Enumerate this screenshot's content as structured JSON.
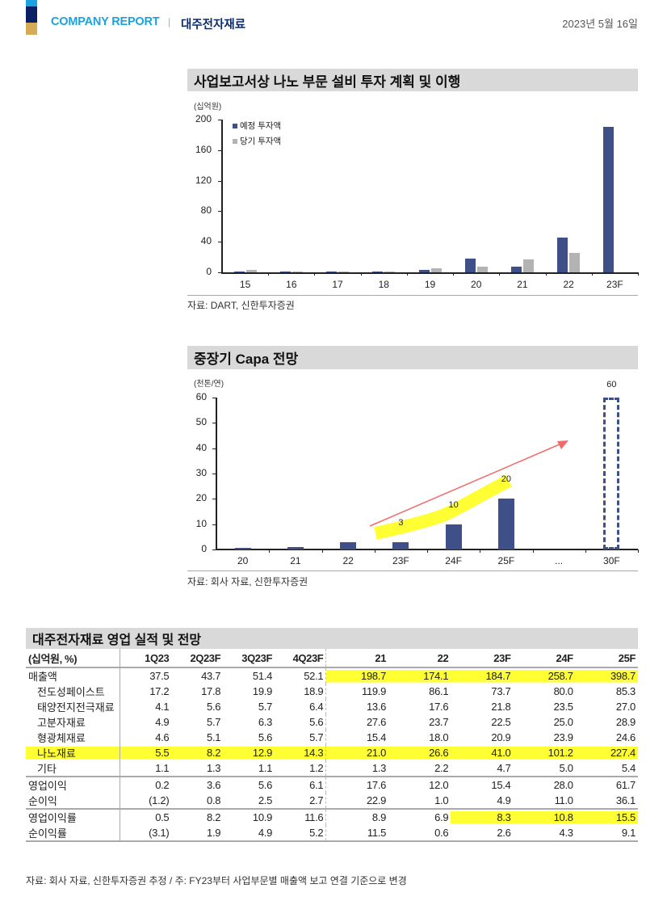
{
  "header": {
    "company_report": "COMPANY REPORT",
    "separator": "|",
    "company_name": "대주전자재료",
    "date": "2023년 5월 16일",
    "logo_colors": [
      "#1aa3e0",
      "#0b1f66",
      "#d4ac55"
    ]
  },
  "chart1": {
    "title": "사업보고서상 나노 부문 설비 투자 계획 및 이행",
    "unit": "(십억원)",
    "legend": [
      "예정 투자액",
      "당기 투자액"
    ],
    "source": "자료: DART, 신한투자증권",
    "colors": {
      "planned": "#3f4f87",
      "actual": "#b3b3b3"
    },
    "yticks": [
      "200",
      "160",
      "120",
      "80",
      "40",
      "0"
    ],
    "categories": [
      "15",
      "16",
      "17",
      "18",
      "19",
      "20",
      "21",
      "22",
      "23F"
    ]
  },
  "chart2": {
    "title": "중장기 Capa 전망",
    "unit": "(천톤/연)",
    "yticks": [
      "60",
      "50",
      "40",
      "30",
      "20",
      "10",
      "0"
    ],
    "categories": [
      "20",
      "21",
      "22",
      "23F",
      "24F",
      "25F",
      "...",
      "30F"
    ],
    "labels": {
      "23F": "3",
      "24F": "10",
      "25F": "20",
      "30F": "60"
    },
    "source": "자료: 회사 자료, 신한투자증권"
  },
  "chart_data": [
    {
      "type": "bar",
      "title": "사업보고서상 나노 부문 설비 투자 계획 및 이행",
      "ylabel": "(십억원)",
      "xlabel": "",
      "categories": [
        "15",
        "16",
        "17",
        "18",
        "19",
        "20",
        "21",
        "22",
        "23F"
      ],
      "series": [
        {
          "name": "예정 투자액",
          "values": [
            1.5,
            1.5,
            1.5,
            1.5,
            3,
            18,
            7,
            46,
            191
          ]
        },
        {
          "name": "당기 투자액",
          "values": [
            3,
            1.5,
            1.5,
            1.5,
            5,
            7,
            17,
            25,
            null
          ]
        }
      ],
      "ylim": [
        0,
        200
      ],
      "yticks": [
        0,
        40,
        80,
        120,
        160,
        200
      ],
      "legend_position": "top-left",
      "grid": false
    },
    {
      "type": "bar",
      "title": "중장기 Capa 전망",
      "ylabel": "(천톤/연)",
      "xlabel": "",
      "categories": [
        "20",
        "21",
        "22",
        "23F",
        "24F",
        "25F",
        "...",
        "30F"
      ],
      "values": [
        0.5,
        1,
        3,
        3,
        10,
        20,
        null,
        60
      ],
      "data_labels": {
        "23F": 3,
        "24F": 10,
        "25F": 20,
        "30F": 60
      },
      "annotations": [
        "30F bar drawn as dashed outline (target)",
        "red upward trend arrow",
        "yellow highlight over 3, 10, 20 labels"
      ],
      "ylim": [
        0,
        60
      ],
      "yticks": [
        0,
        10,
        20,
        30,
        40,
        50,
        60
      ],
      "grid": false
    },
    {
      "type": "table",
      "title": "대주전자재료 영업 실적 및 전망",
      "columns": [
        "(십억원, %)",
        "1Q23",
        "2Q23F",
        "3Q23F",
        "4Q23F",
        "21",
        "22",
        "23F",
        "24F",
        "25F"
      ],
      "rows": [
        [
          "매출액",
          "37.5",
          "43.7",
          "51.4",
          "52.1",
          "198.7",
          "174.1",
          "184.7",
          "258.7",
          "398.7"
        ],
        [
          "전도성페이스트",
          "17.2",
          "17.8",
          "19.9",
          "18.9",
          "119.9",
          "86.1",
          "73.7",
          "80.0",
          "85.3"
        ],
        [
          "태양전지전극재료",
          "4.1",
          "5.6",
          "5.7",
          "6.4",
          "13.6",
          "17.6",
          "21.8",
          "23.5",
          "27.0"
        ],
        [
          "고분자재료",
          "4.9",
          "5.7",
          "6.3",
          "5.6",
          "27.6",
          "23.7",
          "22.5",
          "25.0",
          "28.9"
        ],
        [
          "형광체재료",
          "4.6",
          "5.1",
          "5.6",
          "5.7",
          "15.4",
          "18.0",
          "20.9",
          "23.9",
          "24.6"
        ],
        [
          "나노재료",
          "5.5",
          "8.2",
          "12.9",
          "14.3",
          "21.0",
          "26.6",
          "41.0",
          "101.2",
          "227.4"
        ],
        [
          "기타",
          "1.1",
          "1.3",
          "1.1",
          "1.2",
          "1.3",
          "2.2",
          "4.7",
          "5.0",
          "5.4"
        ],
        [
          "영업이익",
          "0.2",
          "3.6",
          "5.6",
          "6.1",
          "17.6",
          "12.0",
          "15.4",
          "28.0",
          "61.7"
        ],
        [
          "순이익",
          "(1.2)",
          "0.8",
          "2.5",
          "2.7",
          "22.9",
          "1.0",
          "4.9",
          "11.0",
          "36.1"
        ],
        [
          "영업이익률",
          "0.5",
          "8.2",
          "10.9",
          "11.6",
          "8.9",
          "6.9",
          "8.3",
          "10.8",
          "15.5"
        ],
        [
          "순이익률",
          "(3.1)",
          "1.9",
          "4.9",
          "5.2",
          "11.5",
          "0.6",
          "2.6",
          "4.3",
          "9.1"
        ]
      ]
    }
  ],
  "table": {
    "title": "대주전자재료 영업 실적 및 전망",
    "columns": [
      "(십억원, %)",
      "1Q23",
      "2Q23F",
      "3Q23F",
      "4Q23F",
      "21",
      "22",
      "23F",
      "24F",
      "25F"
    ],
    "rows": [
      {
        "label": "매출액",
        "sub": false,
        "values": [
          "37.5",
          "43.7",
          "51.4",
          "52.1",
          "198.7",
          "174.1",
          "184.7",
          "258.7",
          "398.7"
        ]
      },
      {
        "label": "전도성페이스트",
        "sub": true,
        "values": [
          "17.2",
          "17.8",
          "19.9",
          "18.9",
          "119.9",
          "86.1",
          "73.7",
          "80.0",
          "85.3"
        ]
      },
      {
        "label": "태양전지전극재료",
        "sub": true,
        "values": [
          "4.1",
          "5.6",
          "5.7",
          "6.4",
          "13.6",
          "17.6",
          "21.8",
          "23.5",
          "27.0"
        ]
      },
      {
        "label": "고분자재료",
        "sub": true,
        "values": [
          "4.9",
          "5.7",
          "6.3",
          "5.6",
          "27.6",
          "23.7",
          "22.5",
          "25.0",
          "28.9"
        ]
      },
      {
        "label": "형광체재료",
        "sub": true,
        "values": [
          "4.6",
          "5.1",
          "5.6",
          "5.7",
          "15.4",
          "18.0",
          "20.9",
          "23.9",
          "24.6"
        ]
      },
      {
        "label": "나노재료",
        "sub": true,
        "values": [
          "5.5",
          "8.2",
          "12.9",
          "14.3",
          "21.0",
          "26.6",
          "41.0",
          "101.2",
          "227.4"
        ]
      },
      {
        "label": "기타",
        "sub": true,
        "values": [
          "1.1",
          "1.3",
          "1.1",
          "1.2",
          "1.3",
          "2.2",
          "4.7",
          "5.0",
          "5.4"
        ]
      },
      {
        "label": "영업이익",
        "sub": false,
        "values": [
          "0.2",
          "3.6",
          "5.6",
          "6.1",
          "17.6",
          "12.0",
          "15.4",
          "28.0",
          "61.7"
        ]
      },
      {
        "label": "순이익",
        "sub": false,
        "values": [
          "(1.2)",
          "0.8",
          "2.5",
          "2.7",
          "22.9",
          "1.0",
          "4.9",
          "11.0",
          "36.1"
        ]
      },
      {
        "label": "영업이익률",
        "sub": false,
        "values": [
          "0.5",
          "8.2",
          "10.9",
          "11.6",
          "8.9",
          "6.9",
          "8.3",
          "10.8",
          "15.5"
        ]
      },
      {
        "label": "순이익률",
        "sub": false,
        "values": [
          "(3.1)",
          "1.9",
          "4.9",
          "5.2",
          "11.5",
          "0.6",
          "2.6",
          "4.3",
          "9.1"
        ]
      }
    ],
    "source": "자료: 회사 자료, 신한투자증권 추정 / 주: FY23부터 사업부문별 매출액 보고 연결 기준으로 변경",
    "highlight_color": "#ffff33"
  }
}
